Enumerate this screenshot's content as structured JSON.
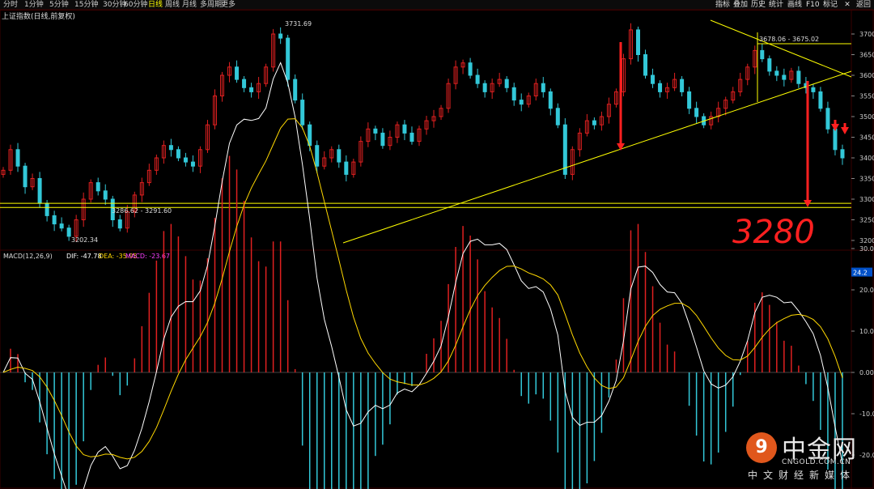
{
  "toolbar": {
    "timeframes": [
      "分时",
      "1分钟",
      "5分钟",
      "15分钟",
      "30分钟",
      "60分钟",
      "日线",
      "周线",
      "月线",
      "多周期",
      "更多"
    ],
    "active": "日线",
    "tools": [
      "指标",
      "叠加",
      "历史",
      "统计",
      "画线",
      "F10",
      "标记",
      "返回"
    ]
  },
  "index_title": "上证指数(日线,前复权)",
  "macd_legend": {
    "name": "MACD(12,26,9)",
    "dif": "DIF: -47.78",
    "dea": "DEA: -35.95",
    "macd": "MACD: -23.67"
  },
  "colors": {
    "up": "#e02020",
    "down": "#33c8d8",
    "dif": "#ffffff",
    "dea": "#ffd800",
    "trend": "#ffff00",
    "grid": "#3a0000",
    "annotation": "#ff2020"
  },
  "chart_data": [
    {
      "type": "candlestick",
      "title": "上证指数(日线,前复权)",
      "ylim": [
        3180,
        3730
      ],
      "yticks": [
        "3700",
        "3650",
        "3600",
        "3550",
        "3500",
        "3450",
        "3400",
        "3350",
        "3300",
        "3250",
        "3200"
      ],
      "price_labels": [
        "3731.69",
        "3678.06 - 3675.02",
        "3286.62 - 3291.60",
        "3202.34"
      ],
      "close_series": [
        3370,
        3420,
        3380,
        3330,
        3350,
        3290,
        3260,
        3240,
        3230,
        3210,
        3250,
        3300,
        3340,
        3320,
        3300,
        3250,
        3230,
        3270,
        3310,
        3340,
        3370,
        3400,
        3430,
        3420,
        3400,
        3390,
        3380,
        3420,
        3480,
        3550,
        3600,
        3620,
        3590,
        3570,
        3560,
        3580,
        3620,
        3700,
        3690,
        3590,
        3540,
        3480,
        3430,
        3380,
        3400,
        3420,
        3390,
        3360,
        3390,
        3440,
        3470,
        3460,
        3430,
        3450,
        3480,
        3460,
        3440,
        3470,
        3490,
        3500,
        3520,
        3580,
        3620,
        3630,
        3600,
        3580,
        3560,
        3580,
        3590,
        3570,
        3540,
        3530,
        3550,
        3580,
        3560,
        3520,
        3480,
        3360,
        3420,
        3460,
        3490,
        3480,
        3500,
        3530,
        3560,
        3640,
        3710,
        3650,
        3600,
        3580,
        3560,
        3570,
        3590,
        3560,
        3520,
        3500,
        3480,
        3500,
        3520,
        3540,
        3560,
        3590,
        3620,
        3660,
        3640,
        3610,
        3600,
        3590,
        3610,
        3580,
        3570,
        3560,
        3520,
        3470,
        3420,
        3400
      ],
      "trendline_levels": [
        3290,
        3280
      ],
      "annotations": [
        "3280"
      ]
    },
    {
      "type": "macd",
      "name": "MACD(12,26,9)",
      "yticks": [
        "30.00",
        "20.00",
        "10.00",
        "0.00",
        "-10.00",
        "-20.00"
      ],
      "current_tag": "24.2",
      "dif": -47.78,
      "dea": -35.95,
      "macd": -23.67
    }
  ],
  "logo": {
    "mark": "9",
    "cn": "中金网",
    "en": "CNGOLD.COM.CN",
    "sub": "中文财经新媒体"
  }
}
